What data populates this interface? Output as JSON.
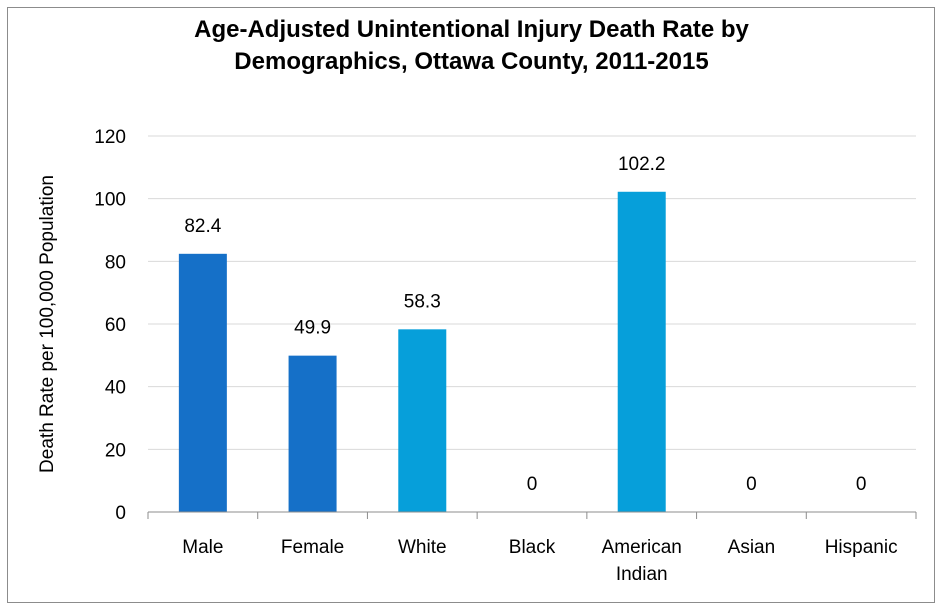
{
  "chart_data": {
    "type": "bar",
    "title_lines": [
      "Age-Adjusted Unintentional Injury Death Rate by",
      "Demographics, Ottawa County, 2011-2015"
    ],
    "ylabel": "Death Rate per 100,000 Population",
    "xlabel": "",
    "ylim": [
      0,
      120
    ],
    "yticks": [
      0,
      20,
      40,
      60,
      80,
      100,
      120
    ],
    "grid": true,
    "categories": [
      {
        "label_lines": [
          "Male"
        ],
        "value": 82.4,
        "value_label": "82.4",
        "color": "#1570c8"
      },
      {
        "label_lines": [
          "Female"
        ],
        "value": 49.9,
        "value_label": "49.9",
        "color": "#1570c8"
      },
      {
        "label_lines": [
          "White"
        ],
        "value": 58.3,
        "value_label": "58.3",
        "color": "#069fda"
      },
      {
        "label_lines": [
          "Black"
        ],
        "value": 0,
        "value_label": "0",
        "color": "#069fda"
      },
      {
        "label_lines": [
          "American",
          "Indian"
        ],
        "value": 102.2,
        "value_label": "102.2",
        "color": "#069fda"
      },
      {
        "label_lines": [
          "Asian"
        ],
        "value": 0,
        "value_label": "0",
        "color": "#069fda"
      },
      {
        "label_lines": [
          "Hispanic"
        ],
        "value": 0,
        "value_label": "0",
        "color": "#069fda"
      }
    ]
  }
}
